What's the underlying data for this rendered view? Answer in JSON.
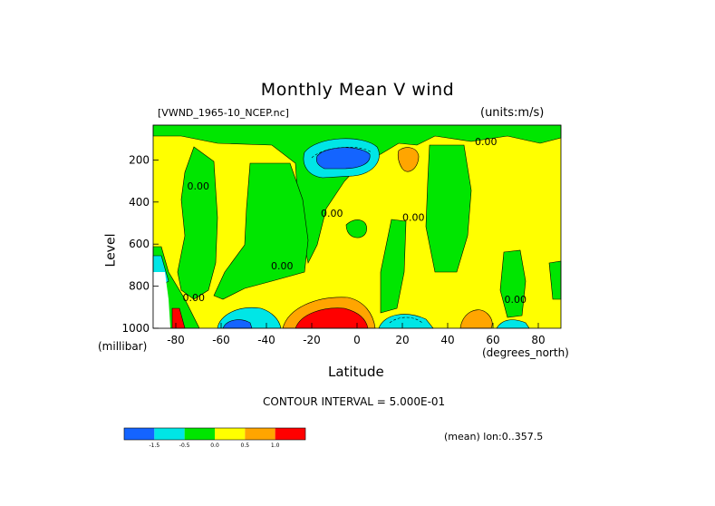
{
  "chart_data": {
    "type": "contour",
    "title": "Monthly Mean V wind",
    "file_label": "[VWND_1965-10_NCEP.nc]",
    "units_label": "(units:m/s)",
    "xlabel": "Latitude",
    "x_unit": "(degrees_north)",
    "ylabel": "Level",
    "y_unit": "(millibar)",
    "xlim": [
      -90,
      90
    ],
    "ylim": [
      1000,
      10
    ],
    "y_reversed": true,
    "x_ticks": [
      {
        "value": -80,
        "label": "-80"
      },
      {
        "value": -60,
        "label": "-60"
      },
      {
        "value": -40,
        "label": "-40"
      },
      {
        "value": -20,
        "label": "-20"
      },
      {
        "value": 0,
        "label": "0"
      },
      {
        "value": 20,
        "label": "20"
      },
      {
        "value": 40,
        "label": "40"
      },
      {
        "value": 60,
        "label": "60"
      },
      {
        "value": 80,
        "label": "80"
      }
    ],
    "y_ticks": [
      {
        "value": 200,
        "label": "200"
      },
      {
        "value": 400,
        "label": "400"
      },
      {
        "value": 600,
        "label": "600"
      },
      {
        "value": 800,
        "label": "800"
      },
      {
        "value": 1000,
        "label": "1000"
      }
    ],
    "contour_interval": "CONTOUR INTERVAL = 5.000E-01",
    "mean_label": "(mean) lon:0..357.5",
    "contour_labels": [
      {
        "text": "0.00",
        "lat": -75,
        "level": 340
      },
      {
        "text": "0.00",
        "lat": 52,
        "level": 130
      },
      {
        "text": "0.00",
        "lat": -16,
        "level": 470
      },
      {
        "text": "0.00",
        "lat": 20,
        "level": 490
      },
      {
        "text": "0.00",
        "lat": -38,
        "level": 720
      },
      {
        "text": "0.00",
        "lat": -77,
        "level": 870
      },
      {
        "text": "0.00",
        "lat": 65,
        "level": 880
      }
    ],
    "colorbar": {
      "levels": [
        "-1.5",
        "-0.5",
        "0.0",
        "0.5",
        "1.0"
      ],
      "colors": [
        "#1464ff",
        "#00e6e6",
        "#00e600",
        "#ffff00",
        "#ffa500",
        "#ff0000"
      ]
    },
    "regions": [
      {
        "name": "positive-yellow",
        "min": 0,
        "max": 0.5,
        "color": "#ffff00"
      },
      {
        "name": "near-zero-green",
        "min": -0.5,
        "max": 0,
        "color": "#00e600"
      },
      {
        "name": "cyan",
        "min": -1.5,
        "max": -0.5,
        "color": "#00e6e6"
      },
      {
        "name": "blue",
        "max": -1.5,
        "color": "#1464ff"
      },
      {
        "name": "orange",
        "min": 0.5,
        "max": 1.0,
        "color": "#ffa500"
      },
      {
        "name": "red",
        "min": 1.0,
        "color": "#ff0000"
      }
    ]
  }
}
